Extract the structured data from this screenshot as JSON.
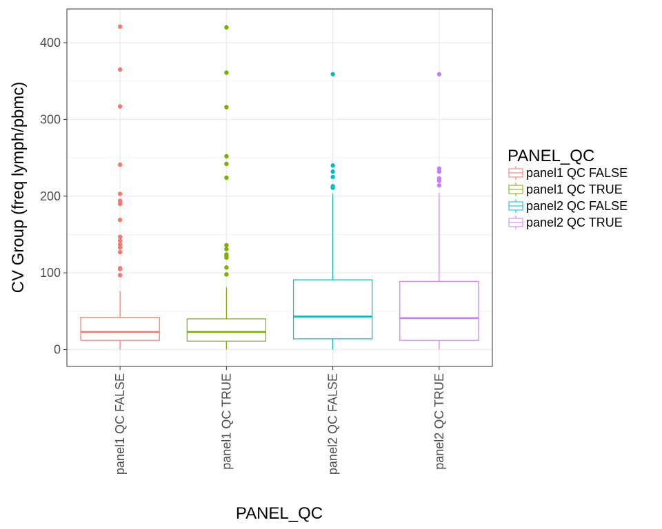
{
  "chart_data": {
    "type": "box",
    "xlabel": "PANEL_QC",
    "ylabel": "CV Group (freq lymph/pbmc)",
    "ylim": [
      -22,
      444
    ],
    "yticks": [
      0,
      100,
      200,
      300,
      400
    ],
    "ytick_labels": [
      "0",
      "100",
      "200",
      "300",
      "400"
    ],
    "grid": true,
    "legend": {
      "title": "PANEL_QC",
      "position": "right"
    },
    "categories": [
      "panel1 QC FALSE",
      "panel1 QC TRUE",
      "panel2 QC FALSE",
      "panel2 QC TRUE"
    ],
    "series": [
      {
        "name": "panel1 QC FALSE",
        "color": "#F8766D",
        "whisker_low": 0,
        "q1": 12,
        "median": 23,
        "q3": 42,
        "whisker_high": 76,
        "outliers": [
          97,
          105,
          106,
          127,
          133,
          137,
          142,
          147,
          169,
          190,
          194,
          203,
          241,
          317,
          365,
          421
        ]
      },
      {
        "name": "panel1 QC TRUE",
        "color": "#7CAE00",
        "whisker_low": 0,
        "q1": 11,
        "median": 23,
        "q3": 40,
        "whisker_high": 81,
        "outliers": [
          98,
          107,
          120,
          122,
          124,
          131,
          136,
          224,
          242,
          252,
          316,
          361,
          420
        ]
      },
      {
        "name": "panel2 QC FALSE",
        "color": "#00BFC4",
        "whisker_low": 0,
        "q1": 14,
        "median": 43,
        "q3": 91,
        "whisker_high": 203,
        "outliers": [
          211,
          213,
          225,
          232,
          240,
          359
        ]
      },
      {
        "name": "panel2 QC TRUE",
        "color": "#C77CFF",
        "whisker_low": 0,
        "q1": 12,
        "median": 41,
        "q3": 89,
        "whisker_high": 204,
        "outliers": [
          214,
          220,
          223,
          232,
          236,
          359
        ]
      }
    ]
  }
}
